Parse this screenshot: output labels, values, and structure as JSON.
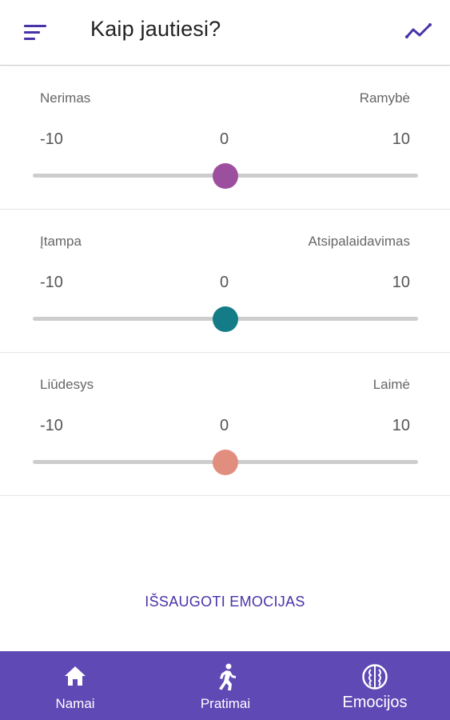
{
  "header": {
    "title": "Kaip jautiesi?",
    "menu_icon": "menu-icon",
    "trend_icon": "trending-icon",
    "accent": "#4a32a8"
  },
  "sliders": [
    {
      "left_label": "Nerimas",
      "right_label": "Ramybė",
      "min": "-10",
      "mid": "0",
      "max": "10",
      "value": 0,
      "color": "#9c4f9f"
    },
    {
      "left_label": "Įtampa",
      "right_label": "Atsipalaidavimas",
      "min": "-10",
      "mid": "0",
      "max": "10",
      "value": 0,
      "color": "#147c86"
    },
    {
      "left_label": "Liūdesys",
      "right_label": "Laimė",
      "min": "-10",
      "mid": "0",
      "max": "10",
      "value": 0,
      "color": "#e28e7f"
    }
  ],
  "save_button": "IŠSAUGOTI EMOCIJAS",
  "bottom_nav": {
    "background": "#5e49b5",
    "items": [
      {
        "label": "Namai",
        "icon": "home-icon"
      },
      {
        "label": "Pratimai",
        "icon": "running-icon"
      },
      {
        "label": "Emocijos",
        "icon": "emotions-icon",
        "active": true
      }
    ]
  }
}
